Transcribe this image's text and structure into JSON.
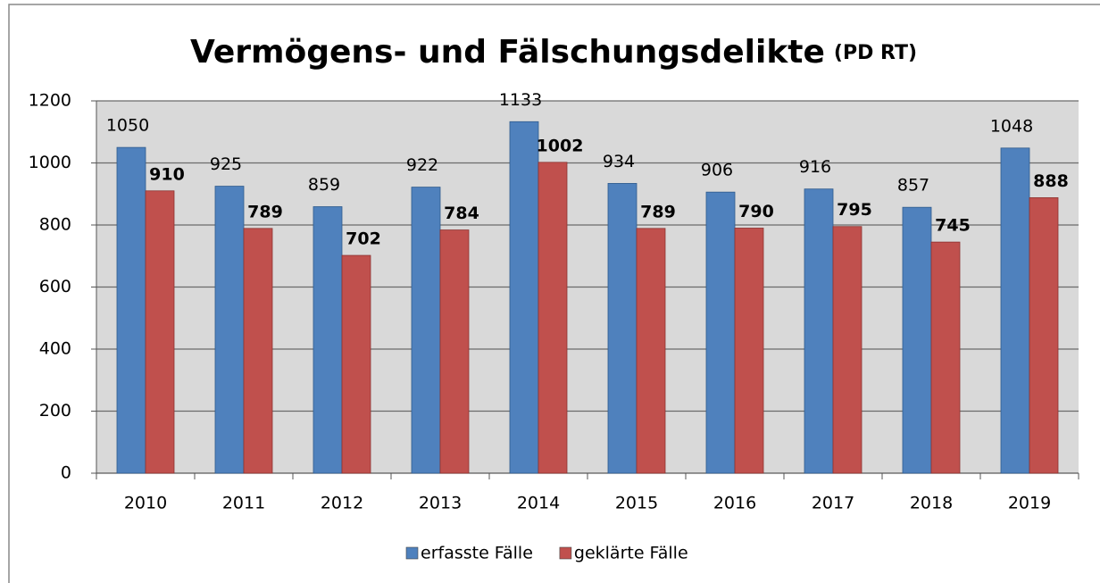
{
  "chart_data": {
    "type": "bar",
    "title": "Vermögens- und Fälschungsdelikte",
    "subtitle": "(PD RT)",
    "categories": [
      "2010",
      "2011",
      "2012",
      "2013",
      "2014",
      "2015",
      "2016",
      "2017",
      "2018",
      "2019"
    ],
    "series": [
      {
        "name": "erfasste Fälle",
        "color": "#4f81bd",
        "values": [
          1050,
          925,
          859,
          922,
          1133,
          934,
          906,
          916,
          857,
          1048
        ]
      },
      {
        "name": "geklärte Fälle",
        "color": "#c0504d",
        "values": [
          910,
          789,
          702,
          784,
          1002,
          789,
          790,
          795,
          745,
          888
        ]
      }
    ],
    "ylim": [
      0,
      1200
    ],
    "yticks": [
      0,
      200,
      400,
      600,
      800,
      1000,
      1200
    ],
    "grid": true,
    "legend": "bottom"
  }
}
